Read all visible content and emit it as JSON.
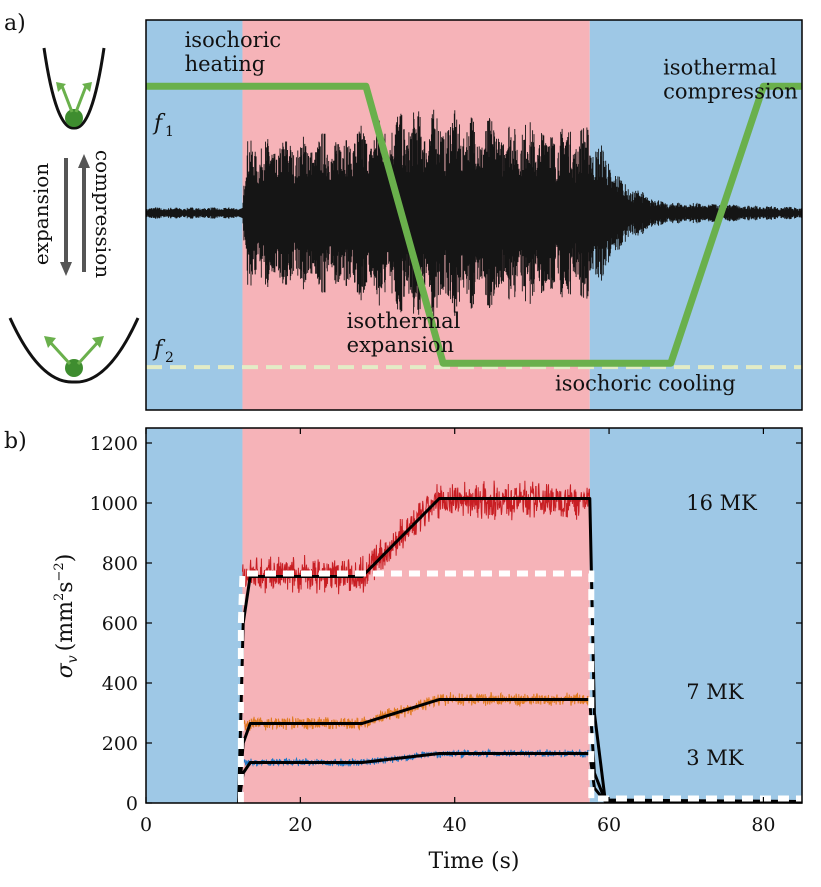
{
  "panel_labels": {
    "a": "a)",
    "b": "b)"
  },
  "colors": {
    "cooling_bg": "#9ec8e6",
    "heating_bg": "#f6b3b8",
    "trap_line": "#6ab04c",
    "f2_dash": "#e3ecc6",
    "signal": "#151515",
    "red_series": "#c81e23",
    "orange_series": "#e07b22",
    "blue_series": "#1f77c6",
    "fit_line": "#000000",
    "white_dash": "#ffffff"
  },
  "schematic": {
    "expansion_label": "expansion",
    "compression_label": "compression"
  },
  "chart_data": [
    {
      "type": "line",
      "panel": "a",
      "title": "",
      "xlabel": "",
      "ylabel": "",
      "xlim": [
        0,
        85
      ],
      "ylim": [
        0,
        1
      ],
      "background_regions": [
        {
          "x": [
            0,
            12.5
          ],
          "color": "blue"
        },
        {
          "x": [
            12.5,
            57.5
          ],
          "color": "red"
        },
        {
          "x": [
            57.5,
            85
          ],
          "color": "blue"
        }
      ],
      "level_labels": {
        "f1": "f1",
        "f2": "f2",
        "f1_value": 0.83,
        "f2_value": 0.11
      },
      "trap_frequency_curve": {
        "x": [
          0,
          28.5,
          38.5,
          68,
          80,
          85
        ],
        "y": [
          0.83,
          0.83,
          0.12,
          0.12,
          0.83,
          0.83
        ]
      },
      "f2_reference": {
        "y": 0.11,
        "style": "dashed"
      },
      "annotations": [
        {
          "text": "isochoric\nheating",
          "x": 5,
          "y": 0.9
        },
        {
          "text": "isothermal\nexpansion",
          "x": 26,
          "y": 0.18
        },
        {
          "text": "isochoric cooling",
          "x": 53,
          "y": 0.05
        },
        {
          "text": "isothermal\ncompression",
          "x": 67,
          "y": 0.83
        }
      ],
      "signal": {
        "description_series": "oscillation envelope amplitude (arb.)",
        "x": [
          0,
          12.5,
          13,
          20,
          28.5,
          33,
          38.5,
          45,
          50,
          57.5,
          62,
          67,
          85
        ],
        "amplitude": [
          0.015,
          0.015,
          0.19,
          0.2,
          0.23,
          0.27,
          0.27,
          0.25,
          0.24,
          0.23,
          0.08,
          0.03,
          0.015
        ]
      }
    },
    {
      "type": "line",
      "panel": "b",
      "title": "",
      "xlabel": "Time (s)",
      "ylabel": "σv (mm2s−2)",
      "ylabel_parts": {
        "sigma": "σ",
        "sub": "v",
        "unit_a": "(mm",
        "sup1": "2",
        "unit_b": "s",
        "sup2": "−2",
        "close": ")"
      },
      "xlim": [
        0,
        85
      ],
      "ylim": [
        0,
        1250
      ],
      "x_ticks": [
        0,
        20,
        40,
        60,
        80
      ],
      "x_tick_labels": [
        "0",
        "20",
        "40",
        "60",
        "80"
      ],
      "y_ticks": [
        0,
        200,
        400,
        600,
        800,
        1000,
        1200
      ],
      "y_tick_labels": [
        "0",
        "200",
        "400",
        "600",
        "800",
        "1000",
        "1200"
      ],
      "background_regions": [
        {
          "x": [
            0,
            12.5
          ],
          "color": "blue"
        },
        {
          "x": [
            12.5,
            57.5
          ],
          "color": "red"
        },
        {
          "x": [
            57.5,
            85
          ],
          "color": "blue"
        }
      ],
      "series": [
        {
          "name": "16 MK",
          "color": "red",
          "mean_level": [
            [
              12.5,
              760
            ],
            [
              28,
              760
            ],
            [
              38,
              1010
            ],
            [
              57.5,
              1010
            ]
          ],
          "noise": 70
        },
        {
          "name": "7 MK",
          "color": "orange",
          "mean_level": [
            [
              12.5,
              265
            ],
            [
              28,
              265
            ],
            [
              38,
              345
            ],
            [
              57.5,
              345
            ]
          ],
          "noise": 25
        },
        {
          "name": "3 MK",
          "color": "blue",
          "mean_level": [
            [
              12.5,
              135
            ],
            [
              28,
              135
            ],
            [
              38,
              165
            ],
            [
              57.5,
              165
            ]
          ],
          "noise": 15
        }
      ],
      "fits": [
        {
          "x": [
            12,
            12.6,
            13.5,
            28,
            38,
            57.5,
            58.1,
            59.5,
            85
          ],
          "y": [
            0,
            600,
            755,
            755,
            1015,
            1015,
            300,
            10,
            5
          ]
        },
        {
          "x": [
            12,
            12.6,
            13.5,
            28,
            38,
            57.5,
            58.1,
            59.5,
            85
          ],
          "y": [
            0,
            200,
            265,
            265,
            345,
            345,
            100,
            8,
            5
          ]
        },
        {
          "x": [
            12,
            12.6,
            13.5,
            28,
            38,
            57.5,
            58.1,
            59.5,
            85
          ],
          "y": [
            0,
            100,
            135,
            135,
            165,
            165,
            50,
            5,
            3
          ]
        }
      ],
      "white_dashed_reference": {
        "x": [
          12.3,
          12.3,
          12.5,
          57.5,
          57.7,
          57.7,
          85
        ],
        "y": [
          0,
          600,
          765,
          765,
          765,
          15,
          15
        ]
      },
      "annotations": [
        {
          "text": "16 MK",
          "x": 70,
          "y": 1000
        },
        {
          "text": "7 MK",
          "x": 70,
          "y": 370
        },
        {
          "text": "3 MK",
          "x": 70,
          "y": 150
        }
      ]
    }
  ]
}
